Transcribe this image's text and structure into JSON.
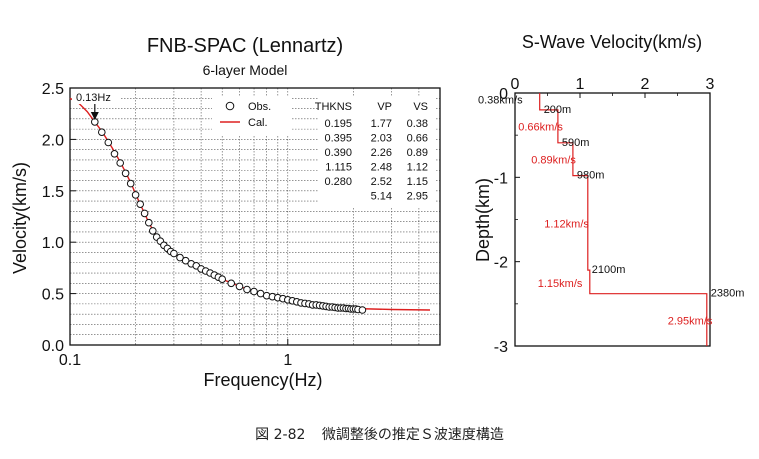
{
  "chart_data": [
    {
      "type": "scatter",
      "title": "FNB-SPAC (Lennartz)",
      "subtitle": "6-layer Model",
      "xlabel": "Frequency(Hz)",
      "ylabel": "Velocity(km/s)",
      "x_scale": "log",
      "xlim": [
        0.1,
        5
      ],
      "ylim": [
        0.0,
        2.5
      ],
      "x_ticks": [
        "0.1",
        "1"
      ],
      "y_ticks": [
        "0.0",
        "0.5",
        "1.0",
        "1.5",
        "2.0",
        "2.5"
      ],
      "grid": true,
      "legend_position": "top-right",
      "annotation": "0.13Hz",
      "annotation_x": 0.13,
      "series": [
        {
          "name": "Obs.",
          "marker": "open-circle",
          "x": [
            0.13,
            0.14,
            0.15,
            0.16,
            0.17,
            0.18,
            0.19,
            0.2,
            0.21,
            0.22,
            0.23,
            0.24,
            0.25,
            0.26,
            0.27,
            0.28,
            0.29,
            0.3,
            0.32,
            0.34,
            0.36,
            0.38,
            0.4,
            0.42,
            0.44,
            0.46,
            0.48,
            0.5,
            0.55,
            0.6,
            0.65,
            0.7,
            0.75,
            0.8,
            0.85,
            0.9,
            0.95,
            1.0,
            1.05,
            1.1,
            1.15,
            1.2,
            1.25,
            1.3,
            1.35,
            1.4,
            1.45,
            1.5,
            1.55,
            1.6,
            1.65,
            1.7,
            1.75,
            1.8,
            1.85,
            1.9,
            1.95,
            2.0,
            2.05,
            2.1,
            2.2
          ],
          "y": [
            2.17,
            2.07,
            1.97,
            1.86,
            1.77,
            1.67,
            1.57,
            1.46,
            1.37,
            1.28,
            1.19,
            1.11,
            1.05,
            1.01,
            0.97,
            0.94,
            0.91,
            0.89,
            0.85,
            0.82,
            0.79,
            0.77,
            0.74,
            0.72,
            0.7,
            0.68,
            0.66,
            0.64,
            0.6,
            0.57,
            0.54,
            0.52,
            0.5,
            0.48,
            0.47,
            0.46,
            0.45,
            0.44,
            0.43,
            0.42,
            0.41,
            0.405,
            0.4,
            0.39,
            0.39,
            0.385,
            0.38,
            0.375,
            0.37,
            0.37,
            0.365,
            0.36,
            0.36,
            0.36,
            0.355,
            0.355,
            0.35,
            0.35,
            0.35,
            0.345,
            0.34
          ]
        },
        {
          "name": "Cal.",
          "marker": "line",
          "color": "#dd2020",
          "x": [
            0.1,
            0.11,
            0.12,
            0.13,
            0.14,
            0.15,
            0.16,
            0.17,
            0.18,
            0.19,
            0.2,
            0.21,
            0.22,
            0.23,
            0.24,
            0.25,
            0.27,
            0.3,
            0.33,
            0.36,
            0.4,
            0.45,
            0.5,
            0.6,
            0.7,
            0.8,
            0.9,
            1.0,
            1.2,
            1.5,
            2.0,
            3.0,
            4.5
          ],
          "y": [
            2.4,
            2.35,
            2.27,
            2.17,
            2.08,
            1.98,
            1.88,
            1.78,
            1.68,
            1.58,
            1.47,
            1.37,
            1.28,
            1.19,
            1.12,
            1.06,
            0.98,
            0.89,
            0.83,
            0.79,
            0.74,
            0.69,
            0.64,
            0.57,
            0.52,
            0.48,
            0.46,
            0.44,
            0.41,
            0.38,
            0.355,
            0.345,
            0.34
          ]
        }
      ],
      "table": {
        "headers": [
          "THKNS",
          "VP",
          "VS"
        ],
        "rows": [
          [
            "0.195",
            "1.77",
            "0.38"
          ],
          [
            "0.395",
            "2.03",
            "0.66"
          ],
          [
            "0.390",
            "2.26",
            "0.89"
          ],
          [
            "1.115",
            "2.48",
            "1.12"
          ],
          [
            "0.280",
            "2.52",
            "1.15"
          ],
          [
            "",
            "5.14",
            "2.95"
          ]
        ]
      }
    },
    {
      "type": "line",
      "title": "S-Wave Velocity(km/s)",
      "xlabel": "S-Wave Velocity(km/s)",
      "ylabel": "Depth(km)",
      "xlim": [
        0,
        3
      ],
      "ylim": [
        -3,
        0
      ],
      "x_ticks": [
        "0",
        "1",
        "2",
        "3"
      ],
      "y_ticks": [
        "0",
        "-1",
        "-2",
        "-3"
      ],
      "x_axis_position": "top",
      "grid": false,
      "profile": {
        "velocity": [
          0.38,
          0.38,
          0.66,
          0.66,
          0.89,
          0.89,
          1.12,
          1.12,
          1.15,
          1.15,
          2.95,
          2.95
        ],
        "depth": [
          0,
          -0.2,
          -0.2,
          -0.59,
          -0.59,
          -0.98,
          -0.98,
          -2.1,
          -2.1,
          -2.38,
          -2.38,
          -3.0
        ]
      },
      "depth_labels": [
        {
          "text": "200m",
          "v": 0.38,
          "d": -0.2
        },
        {
          "text": "590m",
          "v": 0.66,
          "d": -0.59
        },
        {
          "text": "980m",
          "v": 0.89,
          "d": -0.98
        },
        {
          "text": "2100m",
          "v": 1.12,
          "d": -2.1
        },
        {
          "text": "2380m",
          "v": 2.95,
          "d": -2.38
        }
      ],
      "velocity_labels": [
        {
          "text": "0.38km/s",
          "color": "#111111",
          "v": 0.0,
          "d": -0.08
        },
        {
          "text": "0.66km/s",
          "color": "#dd2020",
          "v": 0.05,
          "d": -0.4
        },
        {
          "text": "0.89km/s",
          "color": "#dd2020",
          "v": 0.25,
          "d": -0.79
        },
        {
          "text": "1.12km/s",
          "color": "#dd2020",
          "v": 0.45,
          "d": -1.55
        },
        {
          "text": "1.15km/s",
          "color": "#dd2020",
          "v": 0.35,
          "d": -2.25
        },
        {
          "text": "2.95km/s",
          "color": "#dd2020",
          "v": 2.35,
          "d": -2.7
        }
      ]
    }
  ],
  "caption": {
    "figure_number": "図 2-82",
    "text": "微調整後の推定Ｓ波速度構造"
  }
}
